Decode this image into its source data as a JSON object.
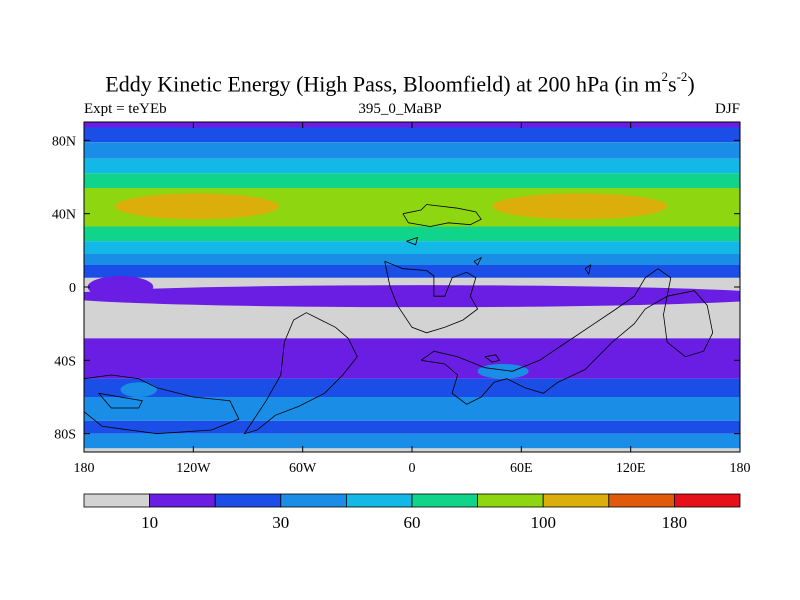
{
  "chart_data": {
    "type": "heatmap",
    "title_main": "Eddy Kinetic Energy (High Pass, Bloomfield) at 200 hPa (in m",
    "title_sup1": "2",
    "title_mid": "s",
    "title_sup2": "-2",
    "title_end": ")",
    "subtitle_left": "Expt = teYEb",
    "subtitle_center": "395_0_MaBP",
    "subtitle_right": "DJF",
    "xlim": [
      -180,
      180
    ],
    "ylim": [
      -90,
      90
    ],
    "x_ticks": [
      {
        "value": -180,
        "label": "180"
      },
      {
        "value": -120,
        "label": "120W"
      },
      {
        "value": -60,
        "label": "60W"
      },
      {
        "value": 0,
        "label": "0"
      },
      {
        "value": 60,
        "label": "60E"
      },
      {
        "value": 120,
        "label": "120E"
      },
      {
        "value": 180,
        "label": "180"
      }
    ],
    "y_ticks": [
      {
        "value": 80,
        "label": "80N"
      },
      {
        "value": 40,
        "label": "40N"
      },
      {
        "value": 0,
        "label": "0"
      },
      {
        "value": -40,
        "label": "40S"
      },
      {
        "value": -80,
        "label": "80S"
      }
    ],
    "colorbar": {
      "colors": [
        "#d3d3d3",
        "#6a1ee3",
        "#1a4ee6",
        "#1a8de6",
        "#13b8e6",
        "#10d48a",
        "#8ed60f",
        "#dcae0c",
        "#e05a0a",
        "#e6101a"
      ],
      "tick_labels": [
        {
          "boundary": 1,
          "label": "10"
        },
        {
          "boundary": 3,
          "label": "30"
        },
        {
          "boundary": 5,
          "label": "60"
        },
        {
          "boundary": 7,
          "label": "100"
        },
        {
          "boundary": 9,
          "label": "180"
        }
      ]
    },
    "bands": [
      {
        "lat_top": 90,
        "lat_bottom": 87,
        "level": 1
      },
      {
        "lat_top": 87,
        "lat_bottom": 79,
        "level": 2
      },
      {
        "lat_top": 79,
        "lat_bottom": 70,
        "level": 3
      },
      {
        "lat_top": 70,
        "lat_bottom": 62,
        "level": 4
      },
      {
        "lat_top": 62,
        "lat_bottom": 54,
        "level": 5
      },
      {
        "lat_top": 54,
        "lat_bottom": 33,
        "level": 6
      },
      {
        "lat_top": 33,
        "lat_bottom": 25,
        "level": 5
      },
      {
        "lat_top": 25,
        "lat_bottom": 18,
        "level": 4
      },
      {
        "lat_top": 18,
        "lat_bottom": 12,
        "level": 3
      },
      {
        "lat_top": 12,
        "lat_bottom": 5,
        "level": 2
      },
      {
        "lat_top": 5,
        "lat_bottom": -28,
        "level": 0
      },
      {
        "lat_top": -28,
        "lat_bottom": -50,
        "level": 1
      },
      {
        "lat_top": -50,
        "lat_bottom": -60,
        "level": 2
      },
      {
        "lat_top": -60,
        "lat_bottom": -73,
        "level": 3
      },
      {
        "lat_top": -73,
        "lat_bottom": -80,
        "level": 2
      },
      {
        "lat_top": -80,
        "lat_bottom": -88,
        "level": 3
      },
      {
        "lat_top": -88,
        "lat_bottom": -90,
        "level": 0
      }
    ],
    "blobs": [
      {
        "lon": -118,
        "lat": 44,
        "rx": 45,
        "ry": 7,
        "level": 7
      },
      {
        "lon": 92,
        "lat": 44,
        "rx": 48,
        "ry": 7,
        "level": 7
      },
      {
        "lon": 5,
        "lat": -5,
        "rx": 200,
        "ry": 6,
        "level": 1
      },
      {
        "lon": -160,
        "lat": 0,
        "rx": 18,
        "ry": 6,
        "level": 1
      },
      {
        "lon": 50,
        "lat": -46,
        "rx": 14,
        "ry": 4,
        "level": 3
      },
      {
        "lon": -150,
        "lat": -56,
        "rx": 10,
        "ry": 4,
        "level": 3
      }
    ],
    "coastlines": [
      [
        [
          -5,
          40
        ],
        [
          5,
          42
        ],
        [
          8,
          45
        ],
        [
          25,
          43
        ],
        [
          35,
          41
        ],
        [
          38,
          37
        ],
        [
          32,
          34
        ],
        [
          20,
          35
        ],
        [
          10,
          33
        ],
        [
          -2,
          35
        ],
        [
          -5,
          40
        ]
      ],
      [
        [
          -15,
          14
        ],
        [
          -5,
          10
        ],
        [
          8,
          9
        ],
        [
          12,
          6
        ],
        [
          12,
          -5
        ],
        [
          18,
          -5
        ],
        [
          20,
          0
        ],
        [
          22,
          5
        ],
        [
          30,
          8
        ],
        [
          35,
          5
        ],
        [
          32,
          -5
        ],
        [
          36,
          -12
        ],
        [
          28,
          -18
        ],
        [
          18,
          -22
        ],
        [
          8,
          -25
        ],
        [
          0,
          -22
        ],
        [
          -8,
          -10
        ],
        [
          -12,
          0
        ],
        [
          -15,
          14
        ]
      ],
      [
        [
          -50,
          -18
        ],
        [
          -42,
          -22
        ],
        [
          -35,
          -28
        ],
        [
          -30,
          -38
        ],
        [
          -38,
          -48
        ],
        [
          -48,
          -58
        ],
        [
          -62,
          -65
        ],
        [
          -75,
          -70
        ],
        [
          -85,
          -78
        ],
        [
          -92,
          -80
        ],
        [
          -80,
          -62
        ],
        [
          -72,
          -48
        ],
        [
          -70,
          -30
        ],
        [
          -65,
          -18
        ],
        [
          -58,
          -14
        ],
        [
          -50,
          -18
        ]
      ],
      [
        [
          5,
          -40
        ],
        [
          18,
          -42
        ],
        [
          25,
          -48
        ],
        [
          22,
          -58
        ],
        [
          30,
          -64
        ],
        [
          38,
          -60
        ],
        [
          45,
          -52
        ],
        [
          52,
          -50
        ],
        [
          62,
          -55
        ],
        [
          72,
          -58
        ],
        [
          80,
          -52
        ],
        [
          95,
          -45
        ],
        [
          110,
          -30
        ],
        [
          122,
          -20
        ],
        [
          128,
          -12
        ],
        [
          140,
          -5
        ],
        [
          142,
          5
        ],
        [
          135,
          10
        ],
        [
          128,
          5
        ],
        [
          122,
          -5
        ],
        [
          112,
          -12
        ],
        [
          100,
          -20
        ],
        [
          85,
          -30
        ],
        [
          70,
          -40
        ],
        [
          55,
          -46
        ],
        [
          40,
          -44
        ],
        [
          25,
          -38
        ],
        [
          12,
          -35
        ],
        [
          5,
          -40
        ]
      ],
      [
        [
          140,
          -5
        ],
        [
          155,
          -2
        ],
        [
          162,
          -10
        ],
        [
          165,
          -25
        ],
        [
          160,
          -35
        ],
        [
          150,
          -38
        ],
        [
          140,
          -30
        ],
        [
          138,
          -15
        ],
        [
          140,
          -5
        ]
      ],
      [
        [
          -180,
          -50
        ],
        [
          -165,
          -48
        ],
        [
          -150,
          -50
        ],
        [
          -140,
          -55
        ],
        [
          -120,
          -60
        ],
        [
          -100,
          -62
        ],
        [
          -95,
          -72
        ],
        [
          -110,
          -78
        ],
        [
          -140,
          -80
        ],
        [
          -170,
          -76
        ],
        [
          -180,
          -68
        ],
        [
          -180,
          -50
        ]
      ],
      [
        [
          -172,
          -58
        ],
        [
          -160,
          -60
        ],
        [
          -148,
          -62
        ],
        [
          -150,
          -66
        ],
        [
          -165,
          -66
        ],
        [
          -172,
          -58
        ]
      ],
      [
        [
          40,
          -38
        ],
        [
          46,
          -37
        ],
        [
          48,
          -40
        ],
        [
          44,
          -41
        ],
        [
          40,
          -38
        ]
      ],
      [
        [
          -3,
          25
        ],
        [
          3,
          27
        ],
        [
          2,
          23
        ],
        [
          -3,
          25
        ]
      ],
      [
        [
          34,
          14
        ],
        [
          38,
          16
        ],
        [
          36,
          12
        ],
        [
          34,
          14
        ]
      ],
      [
        [
          95,
          10
        ],
        [
          98,
          12
        ],
        [
          97,
          7
        ],
        [
          95,
          10
        ]
      ]
    ]
  }
}
